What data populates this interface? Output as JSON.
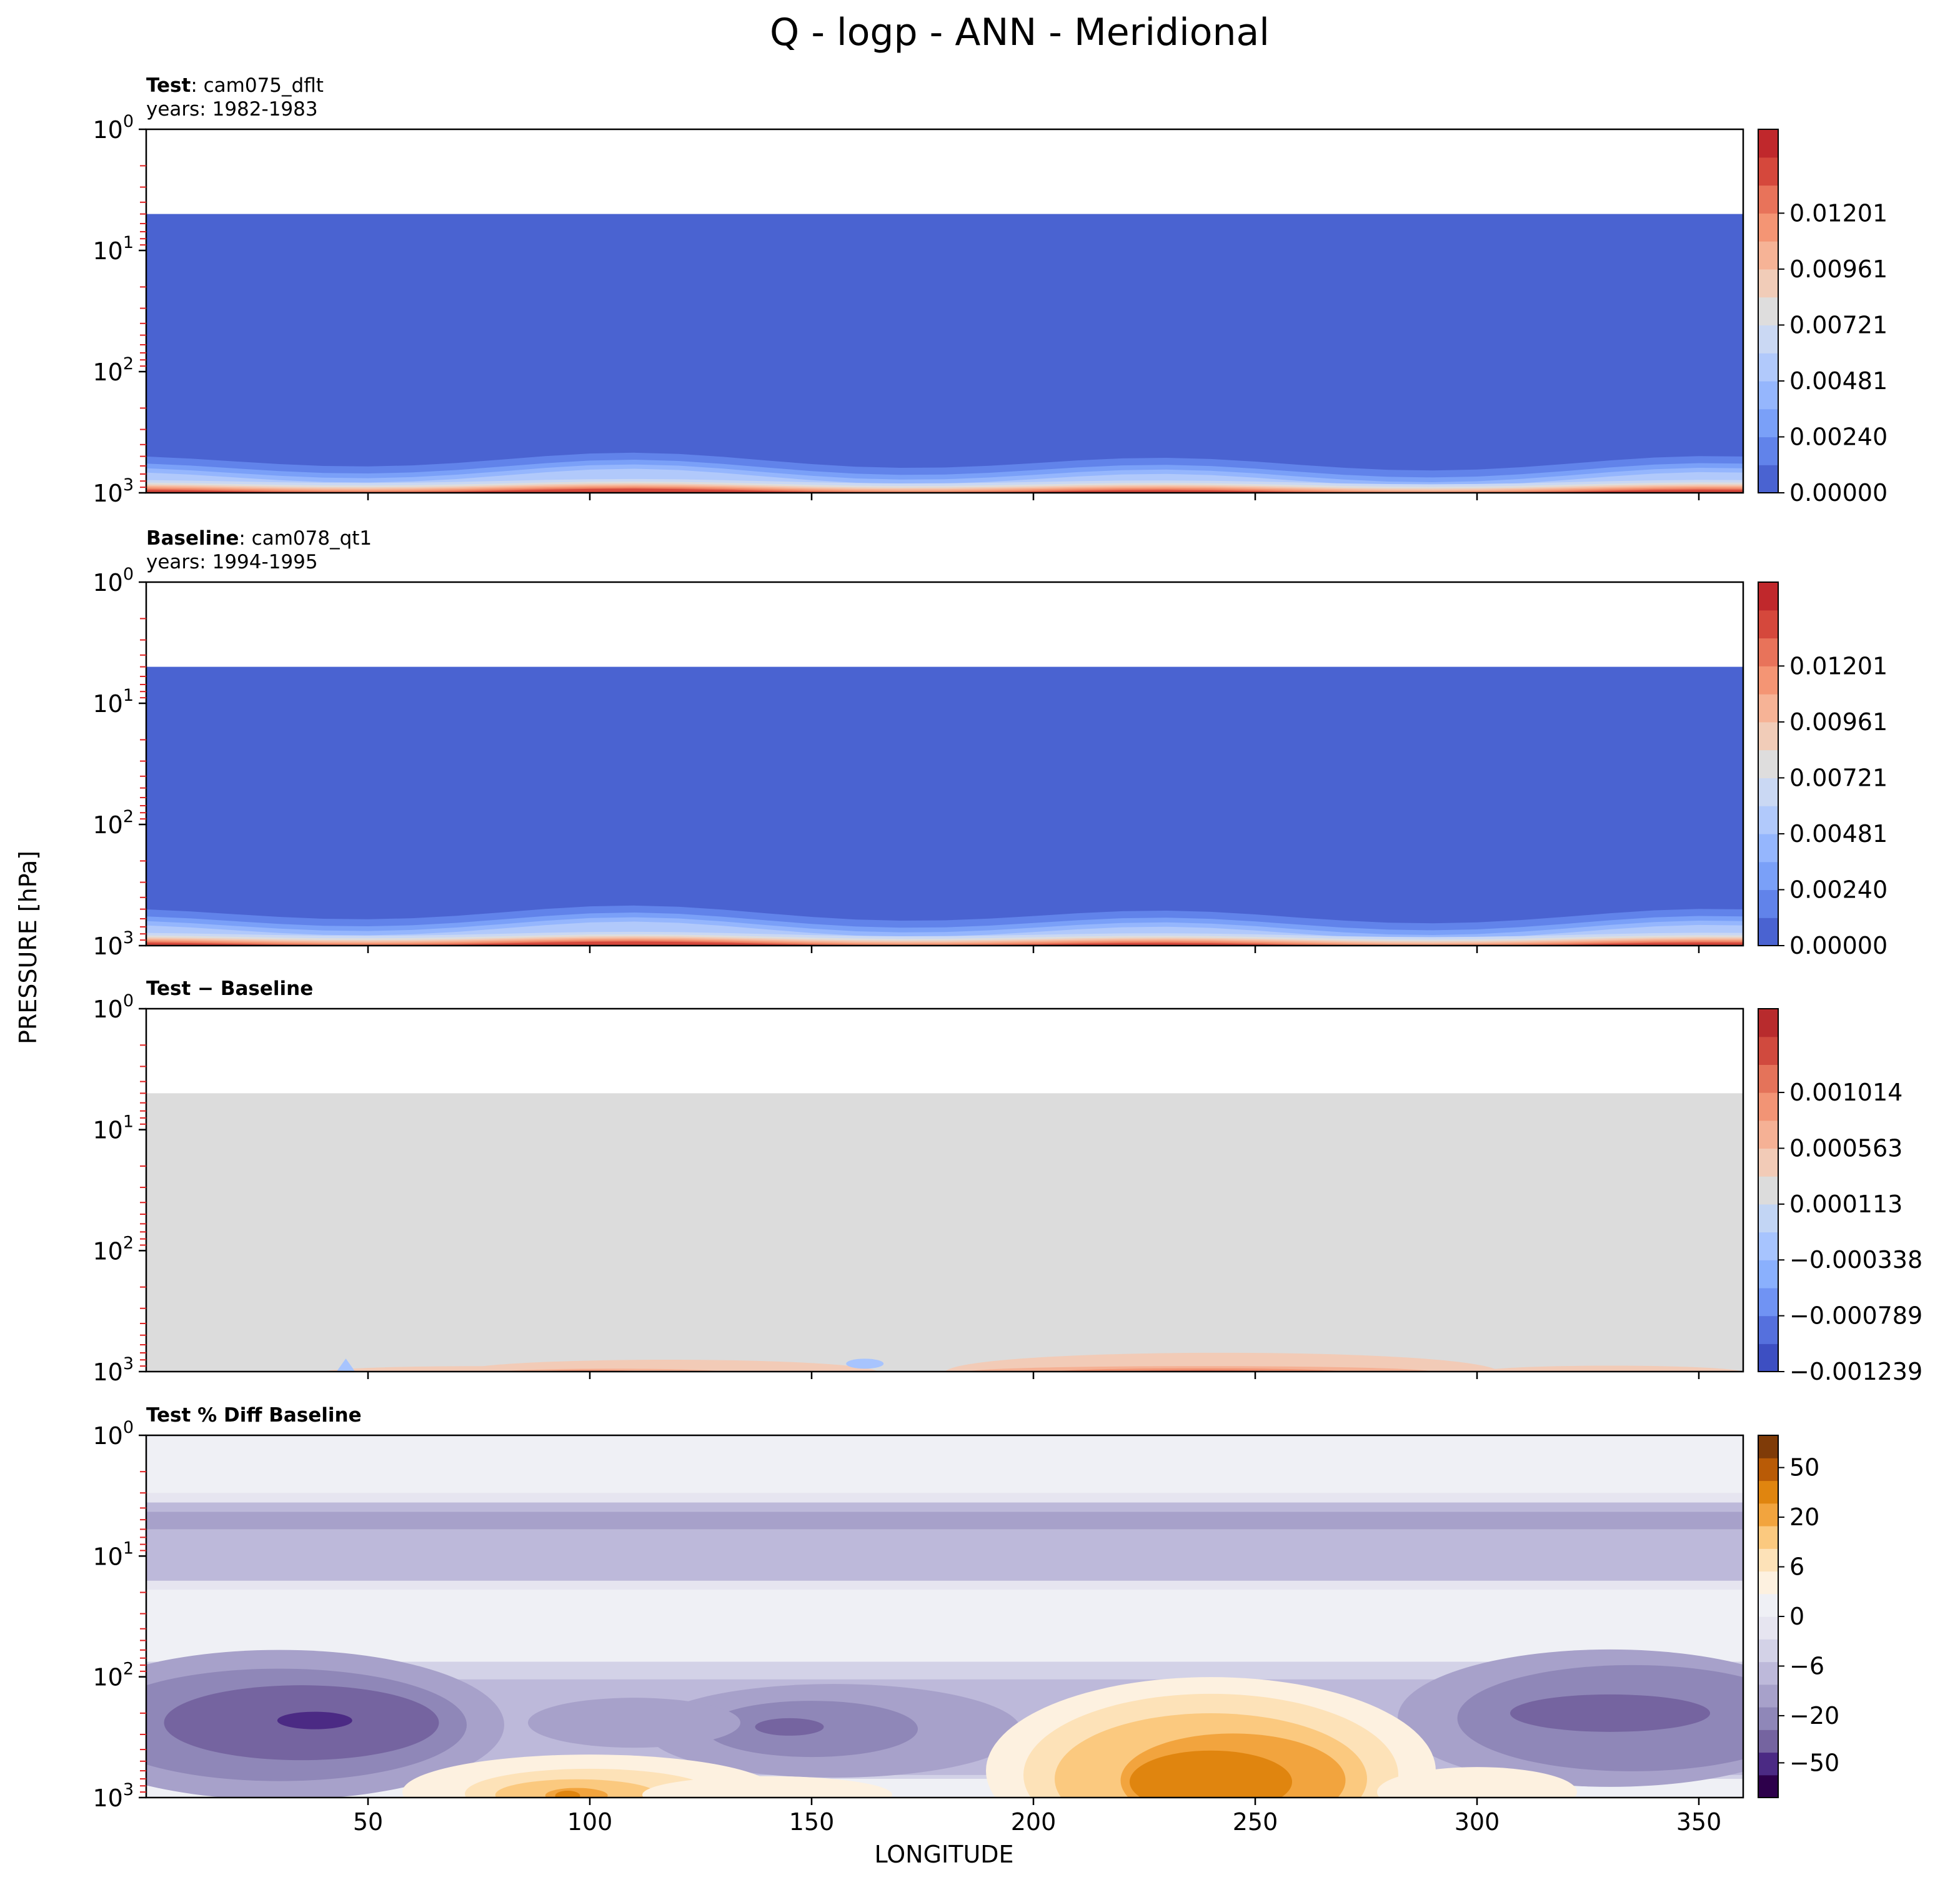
{
  "figure": {
    "title": "Q - logp - ANN - Meridional",
    "ylabel": "PRESSURE [hPa]",
    "xlabel": "LONGITUDE"
  },
  "colors": {
    "test_levels": [
      "#4a63d1",
      "#6183ea",
      "#7aa0f8",
      "#95b6fd",
      "#b1c9fb",
      "#cad8f3",
      "#dedddd",
      "#f1ccb8",
      "#f6b396",
      "#f49574",
      "#e8735a",
      "#d5483c",
      "#c0282c"
    ],
    "diff_levels": [
      "#3d4fc2",
      "#5570dd",
      "#7093f3",
      "#8ab0fd",
      "#a7c4fe",
      "#c2d5f4",
      "#dcdcdc",
      "#f2cbb7",
      "#f5b195",
      "#f29475",
      "#e4735a",
      "#d04a3e",
      "#b82b2d"
    ],
    "pct_levels": [
      "#2d004b",
      "#4b2a84",
      "#7564a0",
      "#8f87b8",
      "#a7a1ca",
      "#bdb9da",
      "#d3d2e7",
      "#e6e5f0",
      "#eff0f5",
      "#fdf1e0",
      "#fde2b8",
      "#fbc97f",
      "#f2a43e",
      "#e0850f",
      "#b95b06",
      "#7f3b08"
    ]
  },
  "chart_data": [
    {
      "type": "heatmap",
      "panel": "test",
      "title_bold": "Test",
      "title_rest": ": cam075_dflt",
      "subtitle": "years: 1982-1983",
      "x_range": [
        0,
        360
      ],
      "y_range_hPa": [
        1000,
        1
      ],
      "y_scale": "log",
      "x_ticks": [
        50,
        100,
        150,
        200,
        250,
        300,
        350
      ],
      "y_ticks": [
        "10",
        "10",
        "10",
        "10"
      ],
      "y_tick_exps": [
        "3",
        "2",
        "1",
        "0"
      ],
      "data_top_hPa": 5,
      "colorbar_ticks": [
        "0.00000",
        "0.00240",
        "0.00481",
        "0.00721",
        "0.00961",
        "0.01201"
      ],
      "colorbar_min": 0.0,
      "colorbar_max": 0.0132
    },
    {
      "type": "heatmap",
      "panel": "baseline",
      "title_bold": "Baseline",
      "title_rest": ": cam078_qt1",
      "subtitle": "years: 1994-1995",
      "x_range": [
        0,
        360
      ],
      "y_range_hPa": [
        1000,
        1
      ],
      "y_scale": "log",
      "x_ticks": [
        50,
        100,
        150,
        200,
        250,
        300,
        350
      ],
      "y_ticks": [
        "10",
        "10",
        "10",
        "10"
      ],
      "y_tick_exps": [
        "3",
        "2",
        "1",
        "0"
      ],
      "data_top_hPa": 5,
      "colorbar_ticks": [
        "0.00000",
        "0.00240",
        "0.00481",
        "0.00721",
        "0.00961",
        "0.01201"
      ],
      "colorbar_min": 0.0,
      "colorbar_max": 0.0132
    },
    {
      "type": "heatmap",
      "panel": "diff",
      "title_bold": "Test − Baseline",
      "title_rest": "",
      "subtitle": "",
      "x_range": [
        0,
        360
      ],
      "y_range_hPa": [
        1000,
        1
      ],
      "y_scale": "log",
      "x_ticks": [
        50,
        100,
        150,
        200,
        250,
        300,
        350
      ],
      "y_ticks": [
        "10",
        "10",
        "10",
        "10"
      ],
      "y_tick_exps": [
        "3",
        "2",
        "1",
        "0"
      ],
      "data_top_hPa": 5,
      "colorbar_ticks": [
        "−0.001239",
        "−0.000789",
        "−0.000338",
        "0.000113",
        "0.000563",
        "0.001014"
      ],
      "colorbar_min": -0.001239,
      "colorbar_max": 0.00124
    },
    {
      "type": "heatmap",
      "panel": "pctdiff",
      "title_bold": "Test % Diff Baseline",
      "title_rest": "",
      "subtitle": "",
      "x_range": [
        0,
        360
      ],
      "y_range_hPa": [
        1000,
        1
      ],
      "y_scale": "log",
      "x_ticks": [
        50,
        100,
        150,
        200,
        250,
        300,
        350
      ],
      "x_tick_labels": [
        "50",
        "100",
        "150",
        "200",
        "250",
        "300",
        "350"
      ],
      "y_ticks": [
        "10",
        "10",
        "10",
        "10"
      ],
      "y_tick_exps": [
        "3",
        "2",
        "1",
        "0"
      ],
      "data_top_hPa": 1,
      "colorbar_ticks": [
        "−50",
        "−20",
        "−6",
        "0",
        "6",
        "20",
        "50"
      ],
      "colorbar_min": -70,
      "colorbar_max": 70
    }
  ]
}
